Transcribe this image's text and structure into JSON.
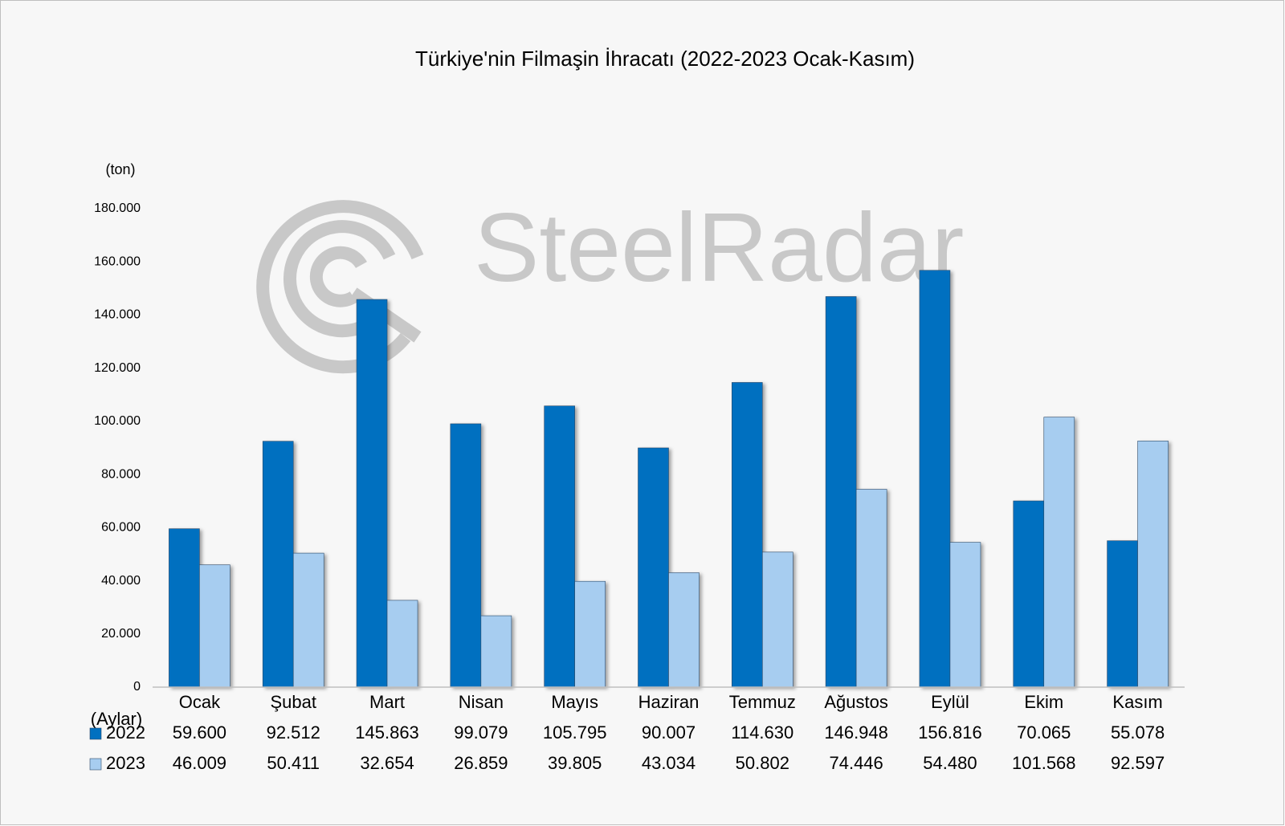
{
  "chart_data": {
    "type": "bar",
    "title": "Türkiye'nin Filmaşin İhracatı (2022-2023 Ocak-Kasım)",
    "y_label": "(ton)",
    "x_label": "(Aylar)",
    "watermark": "SteelRadar",
    "categories": [
      "Ocak",
      "Şubat",
      "Mart",
      "Nisan",
      "Mayıs",
      "Haziran",
      "Temmuz",
      "Ağustos",
      "Eylül",
      "Ekim",
      "Kasım"
    ],
    "series": [
      {
        "name": "2022",
        "color": "#0070c0",
        "values": [
          59600,
          92512,
          145863,
          99079,
          105795,
          90007,
          114630,
          146948,
          156816,
          70065,
          55078
        ],
        "value_labels": [
          "59.600",
          "92.512",
          "145.863",
          "99.079",
          "105.795",
          "90.007",
          "114.630",
          "146.948",
          "156.816",
          "70.065",
          "55.078"
        ]
      },
      {
        "name": "2023",
        "color": "#a7cdf0",
        "values": [
          46009,
          50411,
          32654,
          26859,
          39805,
          43034,
          50802,
          74446,
          54480,
          101568,
          92597
        ],
        "value_labels": [
          "46.009",
          "50.411",
          "32.654",
          "26.859",
          "39.805",
          "43.034",
          "50.802",
          "74.446",
          "54.480",
          "101.568",
          "92.597"
        ]
      }
    ],
    "ylim": [
      0,
      180000
    ],
    "yticks": [
      0,
      {
        "value": 20000,
        "label": "20.000"
      },
      {
        "value": 40000,
        "label": "40.000"
      },
      {
        "value": 60000,
        "label": "60.000"
      },
      {
        "value": 80000,
        "label": "80.000"
      },
      {
        "value": 100000,
        "label": "100.000"
      },
      {
        "value": 120000,
        "label": "120.000"
      },
      {
        "value": 140000,
        "label": "140.000"
      },
      {
        "value": 160000,
        "label": "160.000"
      },
      {
        "value": 180000,
        "label": "180.000"
      }
    ],
    "grid": false
  }
}
